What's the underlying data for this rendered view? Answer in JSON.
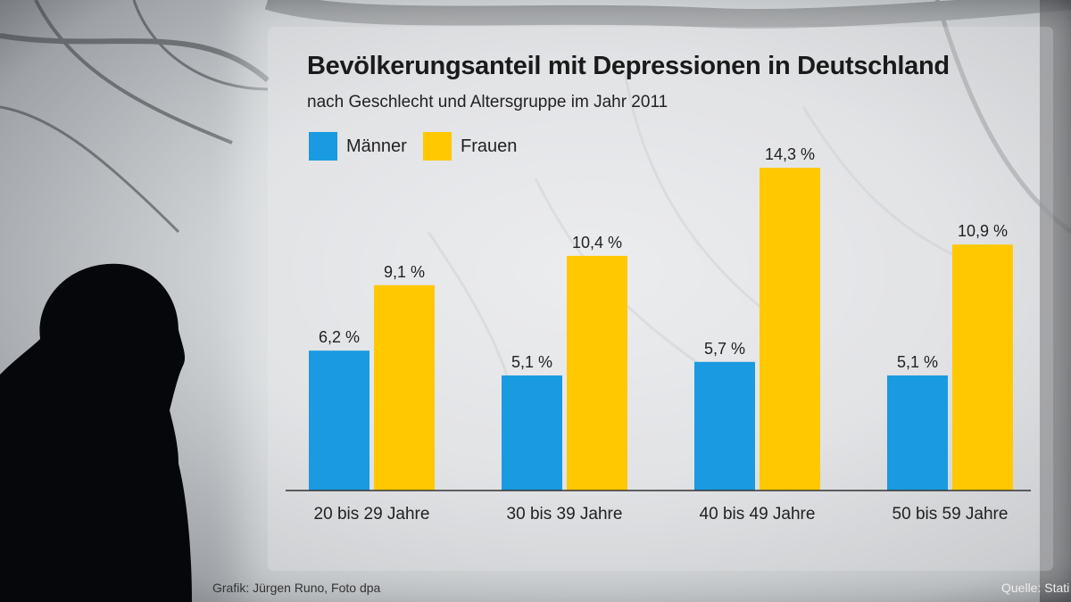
{
  "chart_data": {
    "type": "bar",
    "title": "Bevölkerungsanteil mit Depressionen in Deutschland",
    "subtitle": "nach Geschlecht und Altersgruppe im Jahr 2011",
    "categories": [
      "20 bis 29 Jahre",
      "30 bis 39 Jahre",
      "40 bis 49 Jahre",
      "50 bis 59 Jahre"
    ],
    "series": [
      {
        "name": "Männer",
        "color": "#1a9ae0",
        "values": [
          6.2,
          5.1,
          5.7,
          5.1
        ],
        "labels": [
          "6,2 %",
          "5,1 %",
          "5,7 %",
          "5,1 %"
        ]
      },
      {
        "name": "Frauen",
        "color": "#ffc800",
        "values": [
          9.1,
          10.4,
          14.3,
          10.9
        ],
        "labels": [
          "9,1 %",
          "10,4 %",
          "14,3 %",
          "10,9 %"
        ]
      }
    ],
    "ylim": [
      0,
      15
    ],
    "grid": false,
    "legend": "top-left"
  },
  "credits": {
    "left": "Grafik: Jürgen Runo, Foto dpa",
    "right": "Quelle: Stati"
  }
}
